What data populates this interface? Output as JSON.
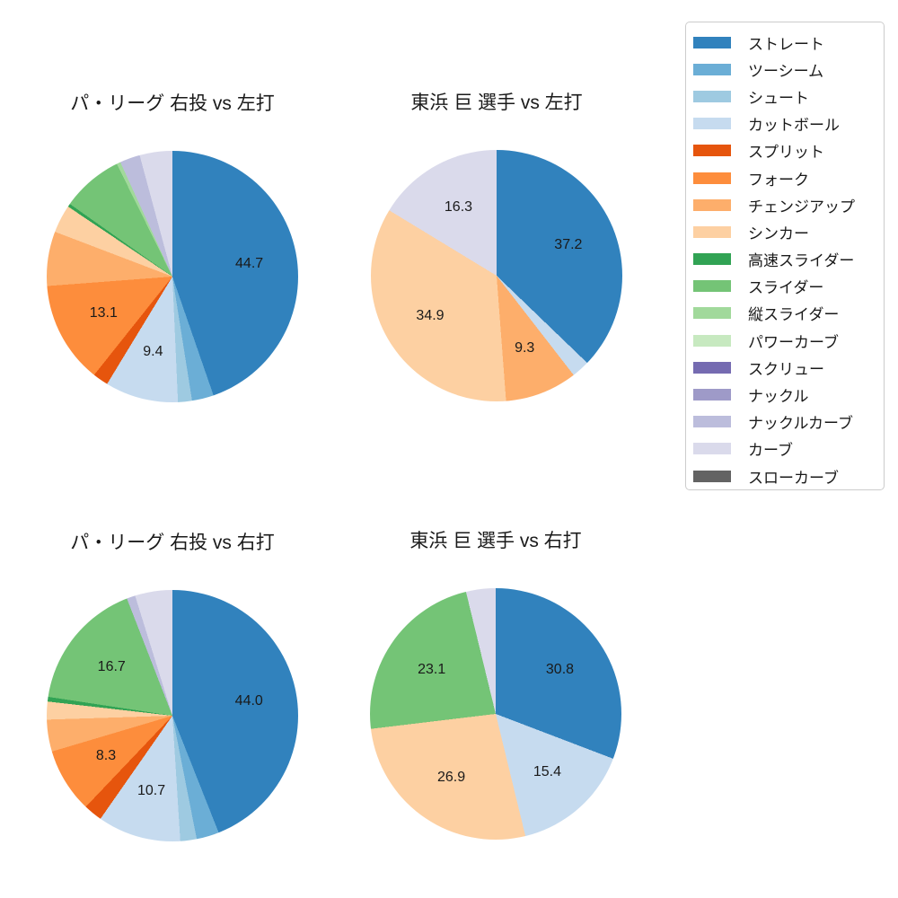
{
  "figure": {
    "background": "#ffffff",
    "text_color": "#1a1a1a",
    "legend_border_color": "#cccccc"
  },
  "palette": {
    "ストレート": "#3182bd",
    "ツーシーム": "#6baed6",
    "シュート": "#9ecae1",
    "カットボール": "#c6dbef",
    "スプリット": "#e6550d",
    "フォーク": "#fd8d3c",
    "チェンジアップ": "#fdae6b",
    "シンカー": "#fdd0a2",
    "高速スライダー": "#31a354",
    "スライダー": "#74c476",
    "縦スライダー": "#a1d99b",
    "パワーカーブ": "#c7e9c0",
    "スクリュー": "#756bb1",
    "ナックル": "#9e9ac8",
    "ナックルカーブ": "#bcbddc",
    "カーブ": "#dadaeb",
    "スローカーブ": "#636363"
  },
  "legend": {
    "items": [
      "ストレート",
      "ツーシーム",
      "シュート",
      "カットボール",
      "スプリット",
      "フォーク",
      "チェンジアップ",
      "シンカー",
      "高速スライダー",
      "スライダー",
      "縦スライダー",
      "パワーカーブ",
      "スクリュー",
      "ナックル",
      "ナックルカーブ",
      "カーブ",
      "スローカーブ"
    ]
  },
  "chart_data": [
    {
      "type": "pie",
      "title": "パ・リーグ 右投 vs 左打",
      "start_angle_deg": 0,
      "direction": "clockwise",
      "slices": [
        {
          "label": "ストレート",
          "value": 44.7,
          "show_value": true
        },
        {
          "label": "ツーシーム",
          "value": 2.8,
          "show_value": false
        },
        {
          "label": "シュート",
          "value": 1.8,
          "show_value": false
        },
        {
          "label": "カットボール",
          "value": 9.4,
          "show_value": true
        },
        {
          "label": "スプリット",
          "value": 2.0,
          "show_value": false
        },
        {
          "label": "フォーク",
          "value": 13.1,
          "show_value": true
        },
        {
          "label": "チェンジアップ",
          "value": 7.0,
          "show_value": false
        },
        {
          "label": "シンカー",
          "value": 3.6,
          "show_value": false
        },
        {
          "label": "高速スライダー",
          "value": 0.4,
          "show_value": false
        },
        {
          "label": "スライダー",
          "value": 7.9,
          "show_value": false
        },
        {
          "label": "縦スライダー",
          "value": 0.5,
          "show_value": false
        },
        {
          "label": "ナックルカーブ",
          "value": 2.6,
          "show_value": false
        },
        {
          "label": "カーブ",
          "value": 4.2,
          "show_value": false
        }
      ]
    },
    {
      "type": "pie",
      "title": "東浜 巨 選手 vs 左打",
      "start_angle_deg": 0,
      "direction": "clockwise",
      "slices": [
        {
          "label": "ストレート",
          "value": 37.2,
          "show_value": true
        },
        {
          "label": "カットボール",
          "value": 2.3,
          "show_value": false
        },
        {
          "label": "チェンジアップ",
          "value": 9.3,
          "show_value": true
        },
        {
          "label": "シンカー",
          "value": 34.9,
          "show_value": true
        },
        {
          "label": "カーブ",
          "value": 16.3,
          "show_value": true
        }
      ]
    },
    {
      "type": "pie",
      "title": "パ・リーグ 右投 vs 右打",
      "start_angle_deg": 0,
      "direction": "clockwise",
      "slices": [
        {
          "label": "ストレート",
          "value": 44.0,
          "show_value": true
        },
        {
          "label": "ツーシーム",
          "value": 2.9,
          "show_value": false
        },
        {
          "label": "シュート",
          "value": 2.1,
          "show_value": false
        },
        {
          "label": "カットボール",
          "value": 10.7,
          "show_value": true
        },
        {
          "label": "スプリット",
          "value": 2.4,
          "show_value": false
        },
        {
          "label": "フォーク",
          "value": 8.3,
          "show_value": true
        },
        {
          "label": "チェンジアップ",
          "value": 4.1,
          "show_value": false
        },
        {
          "label": "シンカー",
          "value": 2.3,
          "show_value": false
        },
        {
          "label": "高速スライダー",
          "value": 0.6,
          "show_value": false
        },
        {
          "label": "スライダー",
          "value": 16.7,
          "show_value": true
        },
        {
          "label": "ナックルカーブ",
          "value": 1.1,
          "show_value": false
        },
        {
          "label": "カーブ",
          "value": 4.8,
          "show_value": false
        }
      ]
    },
    {
      "type": "pie",
      "title": "東浜 巨 選手 vs 右打",
      "start_angle_deg": 0,
      "direction": "clockwise",
      "slices": [
        {
          "label": "ストレート",
          "value": 30.8,
          "show_value": true
        },
        {
          "label": "カットボール",
          "value": 15.4,
          "show_value": true
        },
        {
          "label": "シンカー",
          "value": 26.9,
          "show_value": true
        },
        {
          "label": "スライダー",
          "value": 23.1,
          "show_value": true
        },
        {
          "label": "カーブ",
          "value": 3.8,
          "show_value": false
        }
      ]
    }
  ]
}
